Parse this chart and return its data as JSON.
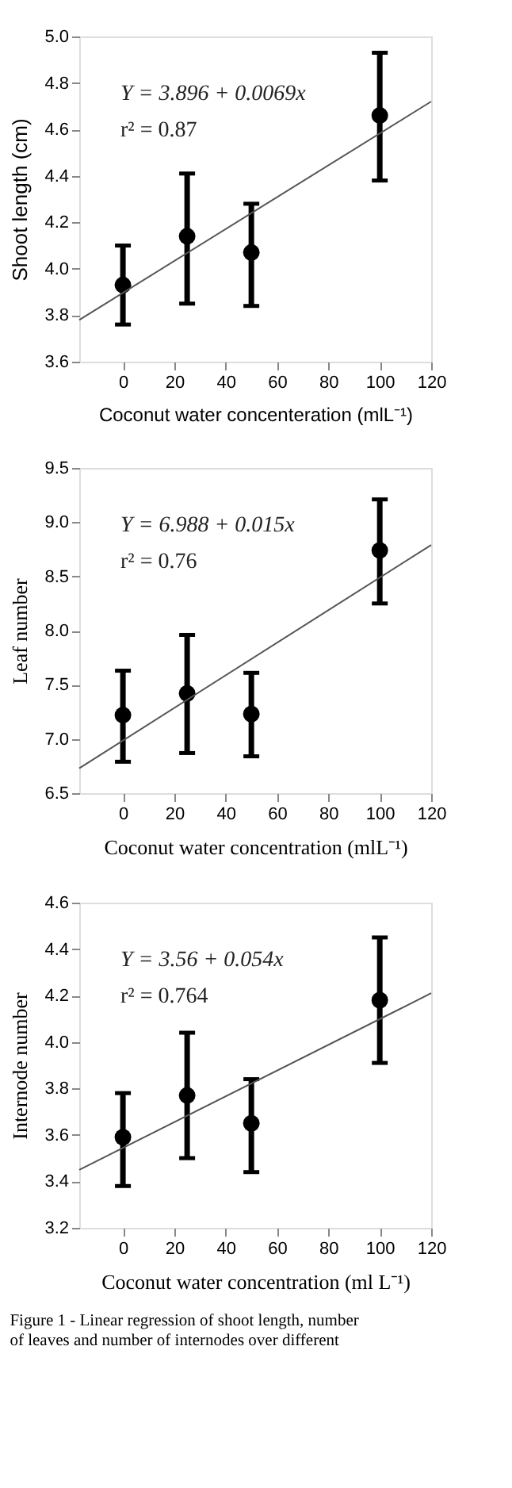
{
  "chart_data": [
    {
      "type": "scatter",
      "xlabel": "Coconut water concenteration (mlL⁻¹)",
      "ylabel": "Shoot length (cm)",
      "xlim": [
        -17,
        120
      ],
      "xticks": [
        0,
        20,
        40,
        60,
        80,
        100,
        120
      ],
      "ylim": [
        3.6,
        5.0
      ],
      "yticks": [
        3.6,
        3.8,
        {
          "value": 4,
          "label": "4.0"
        },
        4.2,
        4.4,
        4.6,
        4.8,
        {
          "value": 5,
          "label": "5.0"
        }
      ],
      "grid": false,
      "legend": false,
      "annotations": [
        "Y = 3.896 + 0.0069x",
        "r² = 0.87"
      ],
      "series": [
        {
          "type": "scatter",
          "color": "#000000",
          "marker": "circle",
          "x": [
            0,
            25,
            50,
            100
          ],
          "values": [
            3.93,
            4.14,
            4.07,
            4.66
          ],
          "errors": [
            [
              3.76,
              4.1
            ],
            [
              3.85,
              4.41
            ],
            [
              3.84,
              4.28
            ],
            [
              4.38,
              4.93
            ]
          ]
        },
        {
          "type": "line",
          "marker": "none",
          "color": "#555555",
          "x": [
            -17,
            120
          ],
          "values": [
            3.78,
            4.72
          ]
        }
      ]
    },
    {
      "type": "scatter",
      "xlabel": "Coconut water concentration (mlL⁻¹)",
      "ylabel": "Leaf number",
      "xlim": [
        -17,
        120
      ],
      "xticks": [
        0,
        20,
        40,
        60,
        80,
        100,
        120
      ],
      "ylim": [
        6.5,
        9.5
      ],
      "yticks": [
        6.5,
        {
          "value": 7,
          "label": "7.0"
        },
        7.5,
        {
          "value": 8,
          "label": "8.0"
        },
        8.5,
        {
          "value": 9,
          "label": "9.0"
        },
        9.5
      ],
      "grid": false,
      "legend": false,
      "annotations": [
        "Y = 6.988 + 0.015x",
        "r² = 0.76"
      ],
      "series": [
        {
          "type": "scatter",
          "color": "#000000",
          "marker": "circle",
          "x": [
            0,
            25,
            50,
            100
          ],
          "values": [
            7.22,
            7.42,
            7.23,
            8.74
          ],
          "errors": [
            [
              6.79,
              7.63
            ],
            [
              6.87,
              7.96
            ],
            [
              6.84,
              7.61
            ],
            [
              8.25,
              9.21
            ]
          ]
        },
        {
          "type": "line",
          "marker": "none",
          "color": "#555555",
          "x": [
            -17,
            120
          ],
          "values": [
            6.73,
            8.79
          ]
        }
      ]
    },
    {
      "type": "scatter",
      "xlabel": "Coconut water concentration (ml L⁻¹)",
      "ylabel": "Internode number",
      "xlim": [
        -17,
        120
      ],
      "xticks": [
        0,
        20,
        40,
        60,
        80,
        100,
        120
      ],
      "ylim": [
        3.2,
        4.6
      ],
      "yticks": [
        3.2,
        3.4,
        3.6,
        3.8,
        {
          "value": 4,
          "label": "4.0"
        },
        4.2,
        4.4,
        4.6
      ],
      "grid": false,
      "legend": false,
      "annotations": [
        "Y = 3.56 + 0.054x",
        "r² = 0.764",
        "Figure 1 - Linear regression of shoot length, number of leaves and number of internodes over different"
      ],
      "series": [
        {
          "type": "scatter",
          "color": "#000000",
          "marker": "circle",
          "x": [
            0,
            25,
            50,
            100
          ],
          "values": [
            3.59,
            3.77,
            3.65,
            4.18
          ],
          "errors": [
            [
              3.38,
              3.78
            ],
            [
              3.5,
              4.04
            ],
            [
              3.44,
              3.84
            ],
            [
              3.91,
              4.45
            ]
          ]
        },
        {
          "type": "line",
          "marker": "none",
          "color": "#555555",
          "x": [
            -17,
            120
          ],
          "values": [
            3.45,
            4.21
          ]
        }
      ]
    }
  ]
}
